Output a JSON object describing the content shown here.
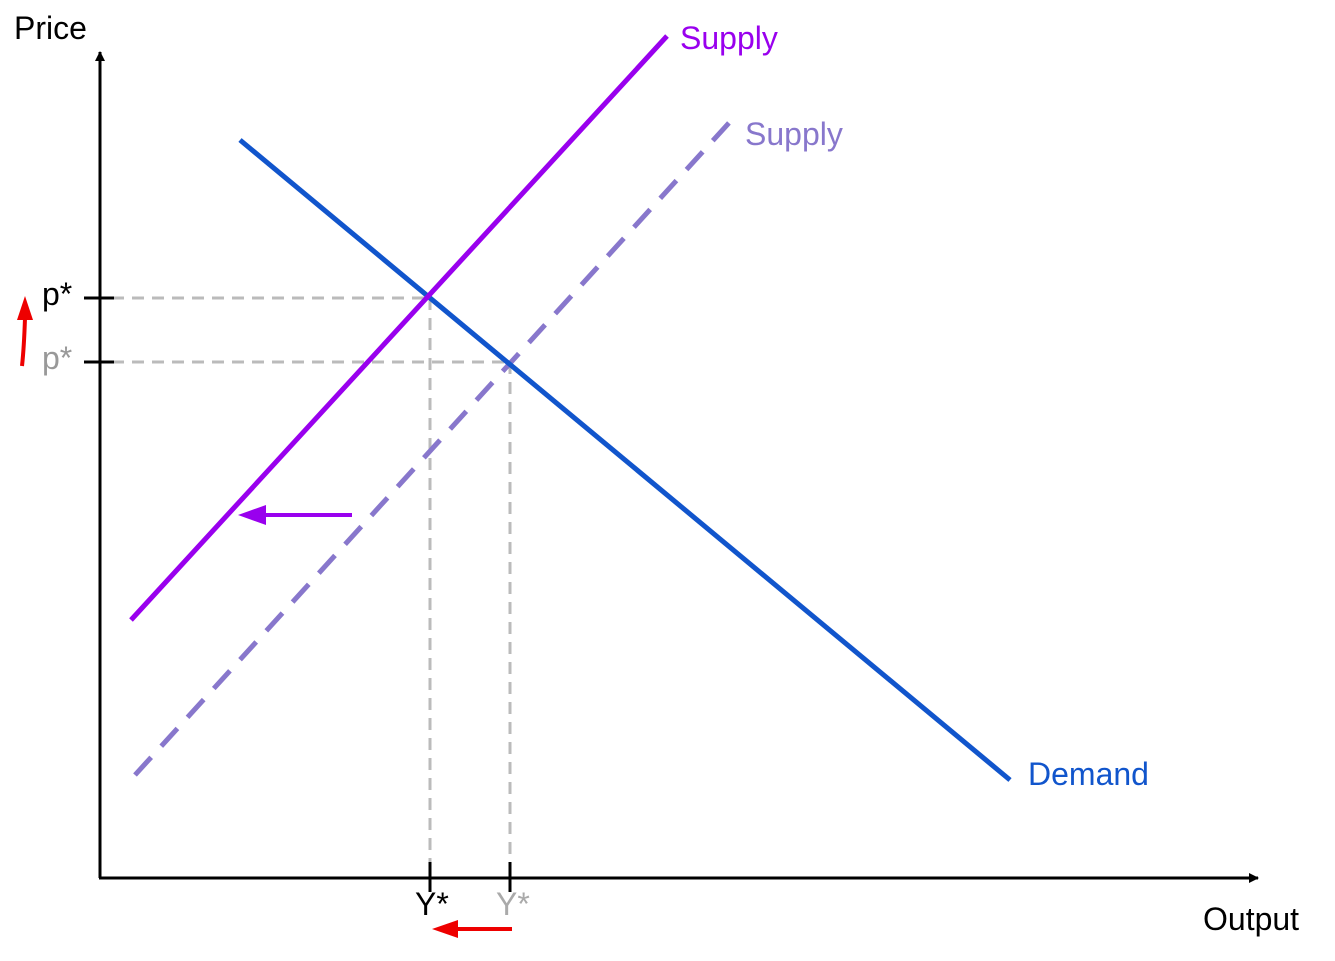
{
  "axes": {
    "y_label": "Price",
    "x_label": "Output"
  },
  "curves": {
    "supply_new": {
      "label": "Supply",
      "color": "#9900ee",
      "style": "solid"
    },
    "supply_old": {
      "label": "Supply",
      "color": "#8877cc",
      "style": "dashed"
    },
    "demand": {
      "label": "Demand",
      "color": "#1155cc",
      "style": "solid"
    }
  },
  "ticks": {
    "p_new": {
      "label": "p*",
      "color": "#000000"
    },
    "p_old": {
      "label": "p*",
      "color": "#999999"
    },
    "y_new": {
      "label": "Y*",
      "color": "#000000"
    },
    "y_old": {
      "label": "Y*",
      "color": "#aaaaaa"
    }
  },
  "colors": {
    "guide_lines": "#bbbbbb",
    "price_change_arrow": "#ee0000",
    "output_change_arrow": "#ee0000",
    "supply_shift_arrow": "#9900ee"
  },
  "annotations": {
    "supply_shift": "left",
    "price_change": "up",
    "output_change": "left"
  }
}
